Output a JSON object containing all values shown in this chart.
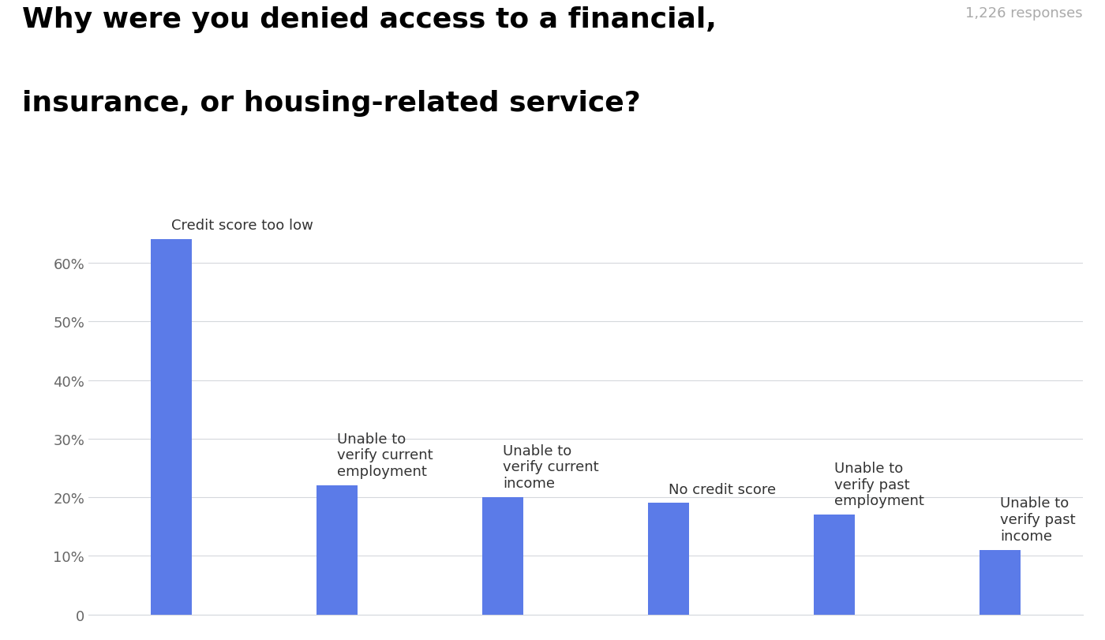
{
  "title_line1": "Why were you denied access to a financial,",
  "title_line2": "insurance, or housing-related service?",
  "subtitle": "1,226 responses",
  "categories": [
    "Credit score too low",
    "Unable to\nverify current\nemployment",
    "Unable to\nverify current\nincome",
    "No credit score",
    "Unable to\nverify past\nemployment",
    "Unable to\nverify past\nincome"
  ],
  "values": [
    0.64,
    0.22,
    0.2,
    0.19,
    0.17,
    0.11
  ],
  "bar_color": "#5B7BE8",
  "background_color": "#ffffff",
  "ylim": [
    0,
    0.7
  ],
  "yticks": [
    0,
    0.1,
    0.2,
    0.3,
    0.4,
    0.5,
    0.6
  ],
  "ytick_labels": [
    "0",
    "10%",
    "20%",
    "30%",
    "40%",
    "50%",
    "60%"
  ],
  "title_fontsize": 26,
  "subtitle_fontsize": 13,
  "bar_label_fontsize": 13,
  "tick_fontsize": 13,
  "grid_color": "#d5d8dc",
  "text_color_title": "#000000",
  "text_color_subtitle": "#aaaaaa",
  "text_color_bar_labels": "#333333"
}
